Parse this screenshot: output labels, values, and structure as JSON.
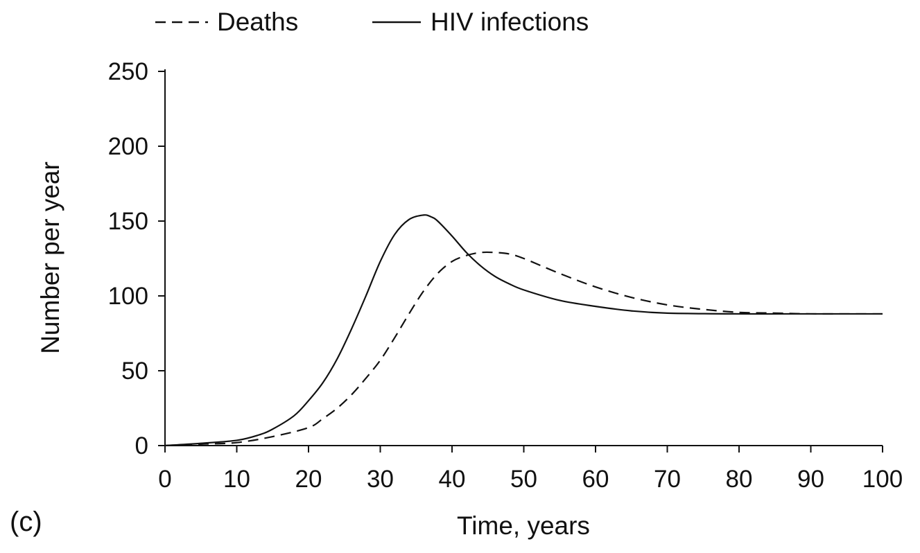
{
  "panel_label": "(c)",
  "chart_data": {
    "type": "line",
    "xlabel": "Time, years",
    "ylabel": "Number per year",
    "xlim": [
      0,
      100
    ],
    "ylim": [
      0,
      250
    ],
    "x_ticks": [
      0,
      10,
      20,
      30,
      40,
      50,
      60,
      70,
      80,
      90,
      100
    ],
    "y_ticks": [
      0,
      50,
      100,
      150,
      200,
      250
    ],
    "grid": false,
    "legend_position": "top",
    "series": [
      {
        "name": "Deaths",
        "style": "dashed",
        "color": "#111111",
        "x": [
          0,
          5,
          10,
          15,
          20,
          22,
          24,
          26,
          28,
          30,
          32,
          34,
          36,
          38,
          40,
          42,
          44,
          46,
          48,
          50,
          55,
          60,
          65,
          70,
          75,
          80,
          85,
          90,
          95,
          100
        ],
        "y": [
          0,
          1,
          2,
          6,
          12,
          18,
          25,
          34,
          45,
          57,
          72,
          88,
          103,
          115,
          123,
          127,
          129,
          129,
          128,
          125,
          115,
          106,
          99,
          94,
          91,
          89,
          88.5,
          88,
          88,
          88
        ]
      },
      {
        "name": "HIV infections",
        "style": "solid",
        "color": "#111111",
        "x": [
          0,
          5,
          10,
          13,
          15,
          18,
          20,
          22,
          24,
          26,
          28,
          30,
          32,
          34,
          36,
          37,
          38,
          40,
          42,
          44,
          46,
          48,
          50,
          55,
          60,
          65,
          70,
          80,
          90,
          100
        ],
        "y": [
          0,
          1.5,
          3.5,
          7,
          11,
          20,
          30,
          42,
          58,
          78,
          100,
          123,
          141,
          151,
          154,
          153,
          150,
          140,
          129,
          120,
          113,
          108,
          104,
          97,
          93,
          90,
          88.5,
          88,
          88,
          88
        ]
      }
    ]
  }
}
